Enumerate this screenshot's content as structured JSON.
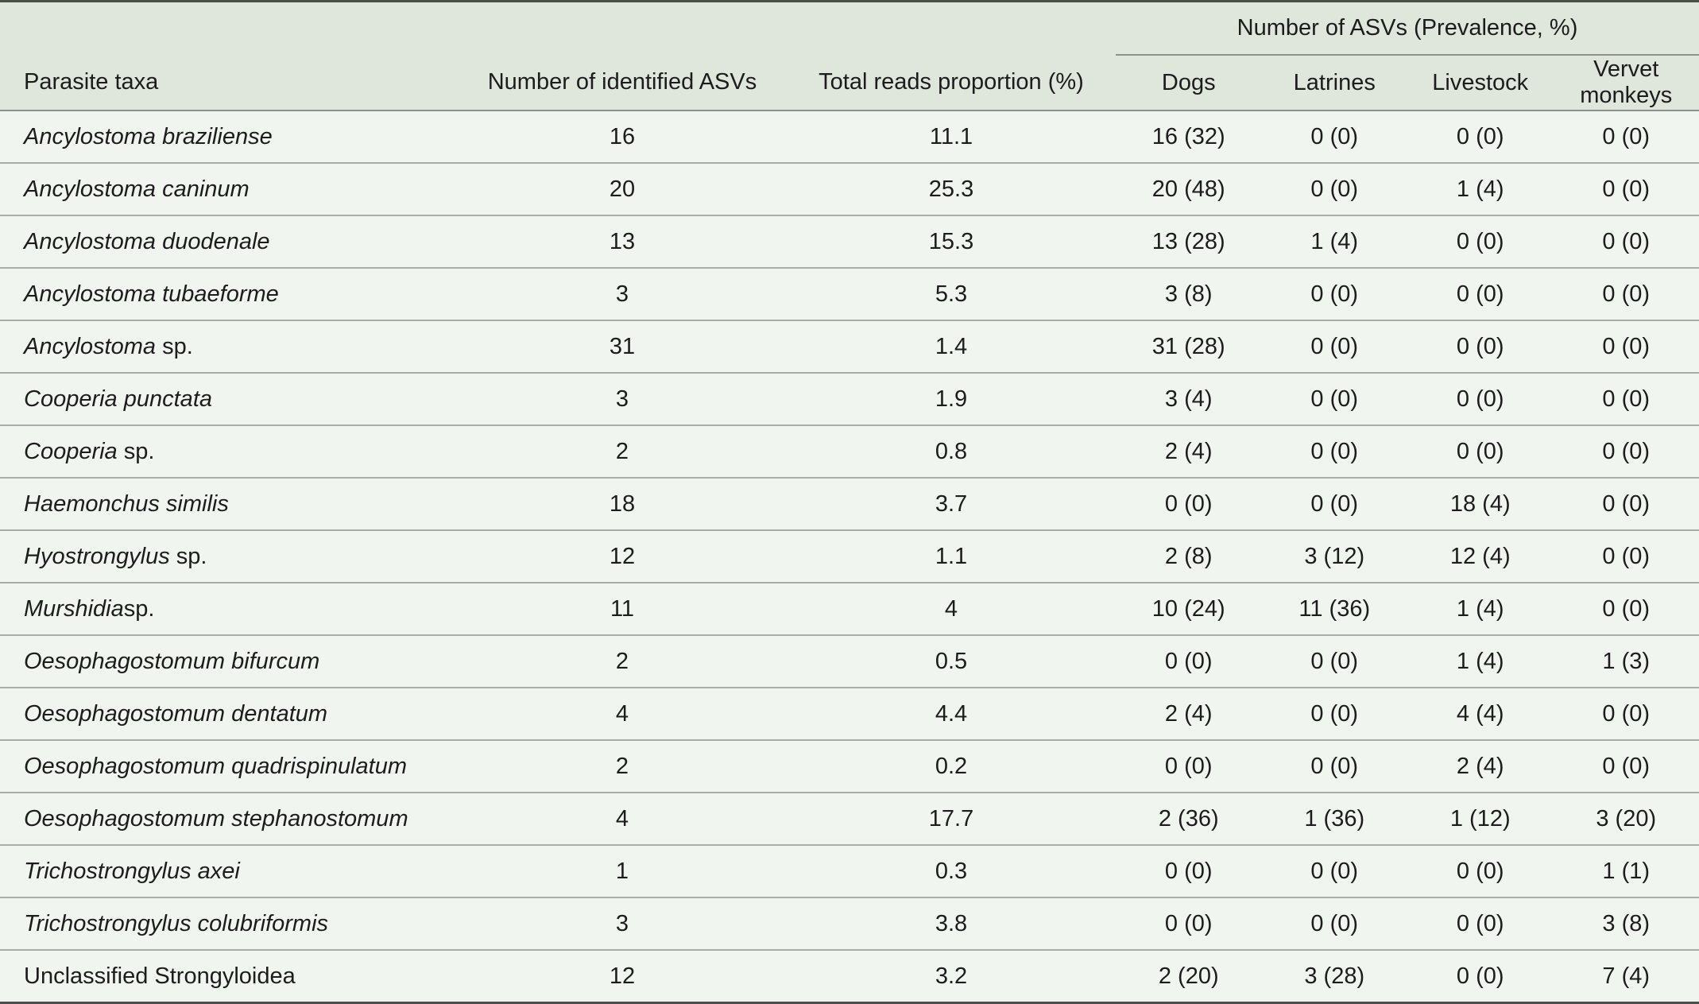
{
  "table": {
    "group_header": "Number of ASVs (Prevalence, %)",
    "columns": [
      "Parasite taxa",
      "Number of identified ASVs",
      "Total reads proportion (%)",
      "Dogs",
      "Latrines",
      "Livestock",
      "Vervet monkeys"
    ],
    "rows": [
      {
        "taxon": "Ancylostoma braziliense",
        "suffix": "",
        "asvs": "16",
        "reads": "11.1",
        "dogs": "16 (32)",
        "latrines": "0 (0)",
        "livestock": "0 (0)",
        "vervet": "0 (0)"
      },
      {
        "taxon": "Ancylostoma caninum",
        "suffix": "",
        "asvs": "20",
        "reads": "25.3",
        "dogs": "20 (48)",
        "latrines": "0 (0)",
        "livestock": "1 (4)",
        "vervet": "0 (0)"
      },
      {
        "taxon": "Ancylostoma duodenale",
        "suffix": "",
        "asvs": "13",
        "reads": "15.3",
        "dogs": "13 (28)",
        "latrines": "1 (4)",
        "livestock": "0 (0)",
        "vervet": "0 (0)"
      },
      {
        "taxon": "Ancylostoma tubaeforme",
        "suffix": "",
        "asvs": "3",
        "reads": "5.3",
        "dogs": "3 (8)",
        "latrines": "0 (0)",
        "livestock": "0 (0)",
        "vervet": "0 (0)"
      },
      {
        "taxon": "Ancylostoma",
        "suffix": " sp.",
        "asvs": "31",
        "reads": "1.4",
        "dogs": "31 (28)",
        "latrines": "0 (0)",
        "livestock": "0 (0)",
        "vervet": "0 (0)"
      },
      {
        "taxon": "Cooperia punctata",
        "suffix": "",
        "asvs": "3",
        "reads": "1.9",
        "dogs": "3 (4)",
        "latrines": "0 (0)",
        "livestock": "0 (0)",
        "vervet": "0 (0)"
      },
      {
        "taxon": "Cooperia",
        "suffix": " sp.",
        "asvs": "2",
        "reads": "0.8",
        "dogs": "2 (4)",
        "latrines": "0 (0)",
        "livestock": "0 (0)",
        "vervet": "0 (0)"
      },
      {
        "taxon": "Haemonchus similis",
        "suffix": "",
        "asvs": "18",
        "reads": "3.7",
        "dogs": "0 (0)",
        "latrines": "0 (0)",
        "livestock": "18 (4)",
        "vervet": "0 (0)"
      },
      {
        "taxon": "Hyostrongylus",
        "suffix": " sp.",
        "asvs": "12",
        "reads": "1.1",
        "dogs": "2 (8)",
        "latrines": "3 (12)",
        "livestock": "12 (4)",
        "vervet": "0 (0)"
      },
      {
        "taxon": "Murshidia",
        "suffix": "sp.",
        "asvs": "11",
        "reads": "4",
        "dogs": "10 (24)",
        "latrines": "11 (36)",
        "livestock": "1 (4)",
        "vervet": "0 (0)"
      },
      {
        "taxon": "Oesophagostomum bifurcum",
        "suffix": "",
        "asvs": "2",
        "reads": "0.5",
        "dogs": "0 (0)",
        "latrines": "0 (0)",
        "livestock": "1 (4)",
        "vervet": "1 (3)"
      },
      {
        "taxon": "Oesophagostomum dentatum",
        "suffix": "",
        "asvs": "4",
        "reads": "4.4",
        "dogs": "2 (4)",
        "latrines": "0 (0)",
        "livestock": "4 (4)",
        "vervet": "0 (0)"
      },
      {
        "taxon": "Oesophagostomum quadrispinulatum",
        "suffix": "",
        "asvs": "2",
        "reads": "0.2",
        "dogs": "0 (0)",
        "latrines": "0 (0)",
        "livestock": "2 (4)",
        "vervet": "0 (0)"
      },
      {
        "taxon": "Oesophagostomum stephanostomum",
        "suffix": "",
        "asvs": "4",
        "reads": "17.7",
        "dogs": "2 (36)",
        "latrines": "1 (36)",
        "livestock": "1 (12)",
        "vervet": "3 (20)"
      },
      {
        "taxon": "Trichostrongylus axei",
        "suffix": "",
        "asvs": "1",
        "reads": "0.3",
        "dogs": "0 (0)",
        "latrines": "0 (0)",
        "livestock": "0 (0)",
        "vervet": "1 (1)"
      },
      {
        "taxon": "Trichostrongylus colubriformis",
        "suffix": "",
        "asvs": "3",
        "reads": "3.8",
        "dogs": "0 (0)",
        "latrines": "0 (0)",
        "livestock": "0 (0)",
        "vervet": "3 (8)"
      },
      {
        "taxon": "",
        "suffix": "Unclassified Strongyloidea",
        "asvs": "12",
        "reads": "3.2",
        "dogs": "2 (20)",
        "latrines": "3 (28)",
        "livestock": "0 (0)",
        "vervet": "7 (4)"
      }
    ]
  }
}
